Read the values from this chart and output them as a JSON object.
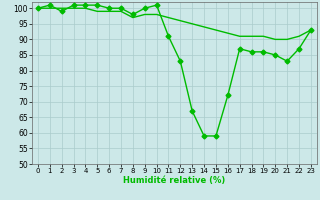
{
  "xlabel": "Humidité relative (%)",
  "line1_x": [
    0,
    1,
    2,
    3,
    4,
    5,
    6,
    7,
    8,
    9,
    10,
    11,
    12,
    13,
    14,
    15,
    16,
    17,
    18,
    19,
    20,
    21,
    22,
    23
  ],
  "line1_y": [
    100,
    101,
    99,
    101,
    101,
    101,
    100,
    100,
    98,
    100,
    101,
    91,
    83,
    67,
    59,
    59,
    72,
    87,
    86,
    86,
    85,
    83,
    87,
    93
  ],
  "line2_x": [
    0,
    1,
    2,
    3,
    4,
    5,
    6,
    7,
    8,
    9,
    10,
    11,
    12,
    13,
    14,
    15,
    16,
    17,
    18,
    19,
    20,
    21,
    22,
    23
  ],
  "line2_y": [
    100,
    100,
    100,
    100,
    100,
    99,
    99,
    99,
    97,
    98,
    98,
    97,
    96,
    95,
    94,
    93,
    92,
    91,
    91,
    91,
    90,
    90,
    91,
    93
  ],
  "line_color": "#00bb00",
  "bg_color": "#cce8e8",
  "grid_color": "#aacccc",
  "ylim": [
    50,
    102
  ],
  "xlim": [
    -0.5,
    23.5
  ],
  "yticks": [
    50,
    55,
    60,
    65,
    70,
    75,
    80,
    85,
    90,
    95,
    100
  ],
  "xticks": [
    0,
    1,
    2,
    3,
    4,
    5,
    6,
    7,
    8,
    9,
    10,
    11,
    12,
    13,
    14,
    15,
    16,
    17,
    18,
    19,
    20,
    21,
    22,
    23
  ],
  "marker": "D",
  "markersize": 2.5,
  "linewidth": 1.0,
  "tick_fontsize": 5.0,
  "xlabel_fontsize": 6.0
}
